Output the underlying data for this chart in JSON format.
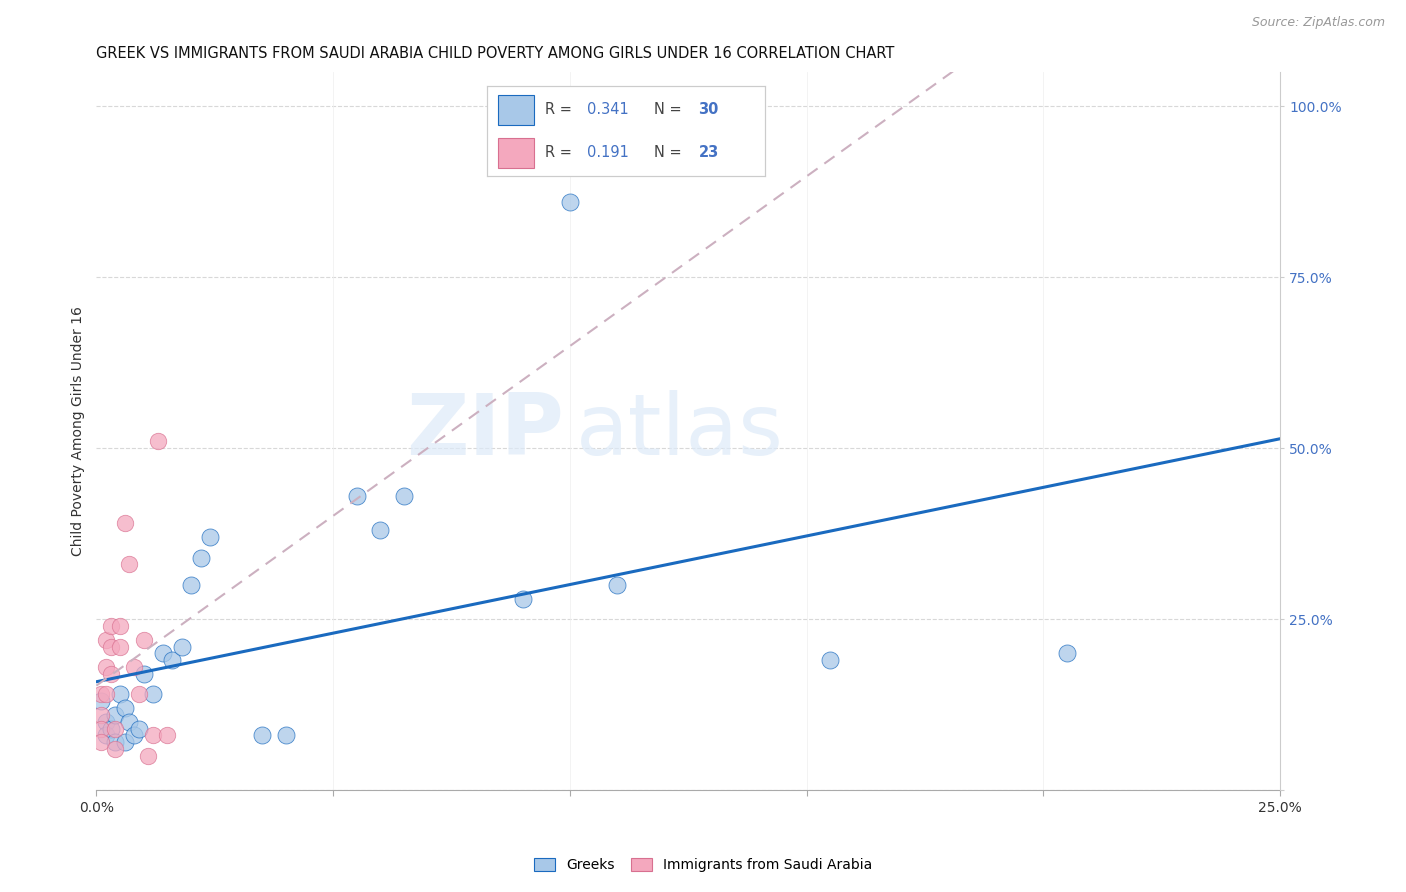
{
  "title": "GREEK VS IMMIGRANTS FROM SAUDI ARABIA CHILD POVERTY AMONG GIRLS UNDER 16 CORRELATION CHART",
  "source": "Source: ZipAtlas.com",
  "ylabel": "Child Poverty Among Girls Under 16",
  "legend_bottom": [
    "Greeks",
    "Immigrants from Saudi Arabia"
  ],
  "xlim": [
    0.0,
    0.25
  ],
  "ylim": [
    0.0,
    1.05
  ],
  "xticks": [
    0.0,
    0.05,
    0.1,
    0.15,
    0.2,
    0.25
  ],
  "xticklabels": [
    "0.0%",
    "",
    "",
    "",
    "",
    "25.0%"
  ],
  "yticks_right": [
    0.0,
    0.25,
    0.5,
    0.75,
    1.0
  ],
  "yticklabels_right": [
    "",
    "25.0%",
    "50.0%",
    "75.0%",
    "100.0%"
  ],
  "R_greek": 0.341,
  "N_greek": 30,
  "R_saudi": 0.191,
  "N_saudi": 23,
  "color_greek": "#a8c8e8",
  "color_saudi": "#f4a8be",
  "line_color_greek": "#1a6abf",
  "line_color_saudi": "#d87090",
  "greek_x": [
    0.001,
    0.002,
    0.002,
    0.003,
    0.004,
    0.004,
    0.005,
    0.006,
    0.006,
    0.007,
    0.008,
    0.009,
    0.01,
    0.012,
    0.014,
    0.016,
    0.018,
    0.02,
    0.022,
    0.024,
    0.035,
    0.04,
    0.055,
    0.06,
    0.065,
    0.09,
    0.1,
    0.11,
    0.155,
    0.205
  ],
  "greek_y": [
    0.13,
    0.1,
    0.08,
    0.09,
    0.11,
    0.07,
    0.14,
    0.12,
    0.07,
    0.1,
    0.08,
    0.09,
    0.17,
    0.14,
    0.2,
    0.19,
    0.21,
    0.3,
    0.34,
    0.37,
    0.08,
    0.08,
    0.43,
    0.38,
    0.43,
    0.28,
    0.86,
    0.3,
    0.19,
    0.2
  ],
  "saudi_x": [
    0.001,
    0.001,
    0.001,
    0.001,
    0.002,
    0.002,
    0.002,
    0.003,
    0.003,
    0.003,
    0.004,
    0.004,
    0.005,
    0.005,
    0.006,
    0.007,
    0.008,
    0.009,
    0.01,
    0.011,
    0.012,
    0.013,
    0.015
  ],
  "saudi_y": [
    0.14,
    0.11,
    0.09,
    0.07,
    0.22,
    0.18,
    0.14,
    0.24,
    0.21,
    0.17,
    0.09,
    0.06,
    0.24,
    0.21,
    0.39,
    0.33,
    0.18,
    0.14,
    0.22,
    0.05,
    0.08,
    0.51,
    0.08
  ]
}
